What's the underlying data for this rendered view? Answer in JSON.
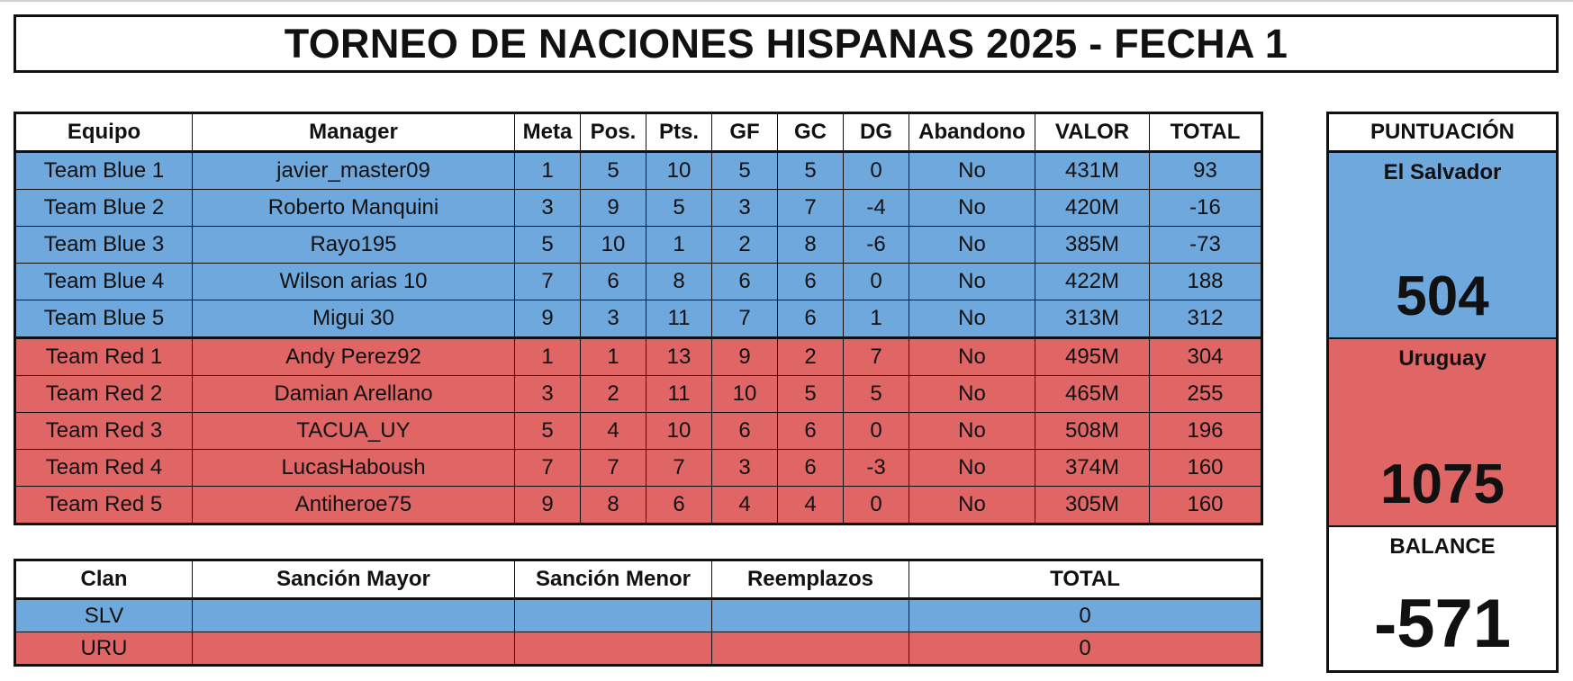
{
  "title": "TORNEO DE NACIONES HISPANAS 2025 - FECHA 1",
  "main_table": {
    "headers": [
      "Equipo",
      "Manager",
      "Meta",
      "Pos.",
      "Pts.",
      "GF",
      "GC",
      "DG",
      "Abandono",
      "VALOR",
      "TOTAL"
    ],
    "rows": [
      {
        "team": "blue",
        "cells": [
          "Team Blue 1",
          "javier_master09",
          "1",
          "5",
          "10",
          "5",
          "5",
          "0",
          "No",
          "431M",
          "93"
        ]
      },
      {
        "team": "blue",
        "cells": [
          "Team Blue 2",
          "Roberto Manquini",
          "3",
          "9",
          "5",
          "3",
          "7",
          "-4",
          "No",
          "420M",
          "-16"
        ]
      },
      {
        "team": "blue",
        "cells": [
          "Team Blue 3",
          "Rayo195",
          "5",
          "10",
          "1",
          "2",
          "8",
          "-6",
          "No",
          "385M",
          "-73"
        ]
      },
      {
        "team": "blue",
        "cells": [
          "Team Blue 4",
          "Wilson arias 10",
          "7",
          "6",
          "8",
          "6",
          "6",
          "0",
          "No",
          "422M",
          "188"
        ]
      },
      {
        "team": "blue",
        "cells": [
          "Team Blue 5",
          "Migui 30",
          "9",
          "3",
          "11",
          "7",
          "6",
          "1",
          "No",
          "313M",
          "312"
        ]
      },
      {
        "team": "red",
        "cells": [
          "Team Red 1",
          "Andy Perez92",
          "1",
          "1",
          "13",
          "9",
          "2",
          "7",
          "No",
          "495M",
          "304"
        ]
      },
      {
        "team": "red",
        "cells": [
          "Team Red 2",
          "Damian Arellano",
          "3",
          "2",
          "11",
          "10",
          "5",
          "5",
          "No",
          "465M",
          "255"
        ]
      },
      {
        "team": "red",
        "cells": [
          "Team Red 3",
          "TACUA_UY",
          "5",
          "4",
          "10",
          "6",
          "6",
          "0",
          "No",
          "508M",
          "196"
        ]
      },
      {
        "team": "red",
        "cells": [
          "Team Red 4",
          "LucasHaboush",
          "7",
          "7",
          "7",
          "3",
          "6",
          "-3",
          "No",
          "374M",
          "160"
        ]
      },
      {
        "team": "red",
        "cells": [
          "Team Red 5",
          "Antiheroe75",
          "9",
          "8",
          "6",
          "4",
          "4",
          "0",
          "No",
          "305M",
          "160"
        ]
      }
    ]
  },
  "sanctions_table": {
    "headers": [
      "Clan",
      "Sanción Mayor",
      "Sanción Menor",
      "Reemplazos",
      "TOTAL"
    ],
    "rows": [
      {
        "team": "blue",
        "cells": [
          "SLV",
          "",
          "",
          "",
          "0"
        ]
      },
      {
        "team": "red",
        "cells": [
          "URU",
          "",
          "",
          "",
          "0"
        ]
      }
    ]
  },
  "scoreboard": {
    "header": "PUNTUACIÓN",
    "el_salvador": {
      "label": "El Salvador",
      "score": "504"
    },
    "uruguay": {
      "label": "Uruguay",
      "score": "1075"
    },
    "balance": {
      "label": "BALANCE",
      "value": "-571"
    }
  },
  "colors": {
    "blue": "#6fa8dc",
    "red": "#e06666",
    "border": "#111111"
  }
}
